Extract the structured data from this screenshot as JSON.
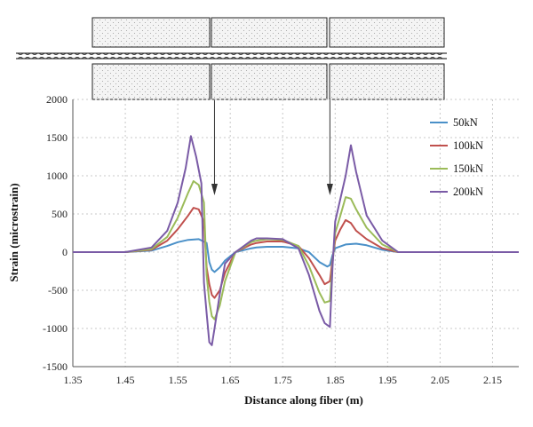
{
  "chart_data": {
    "type": "line",
    "xlabel": "Distance along fiber (m)",
    "ylabel": "Strain (microstrain)",
    "xlim": [
      1.35,
      2.2
    ],
    "ylim": [
      -1500,
      2000
    ],
    "xticks": [
      1.35,
      1.45,
      1.55,
      1.65,
      1.75,
      1.85,
      1.95,
      2.05,
      2.15
    ],
    "xtick_labels": [
      "1.35",
      "1.45",
      "1.55",
      "1.65",
      "1.75",
      "1.85",
      "1.95",
      "2.05",
      "2.15"
    ],
    "yticks": [
      -1500,
      -1000,
      -500,
      0,
      500,
      1000,
      1500,
      2000
    ],
    "ytick_labels": [
      "-1500",
      "-1000",
      "-500",
      "0",
      "500",
      "1000",
      "1500",
      "2000"
    ],
    "grid": "dotted",
    "legend_position": "right",
    "series": [
      {
        "name": "50kN",
        "color": "#4a90c8",
        "x": [
          1.35,
          1.45,
          1.5,
          1.53,
          1.55,
          1.57,
          1.59,
          1.605,
          1.61,
          1.615,
          1.62,
          1.63,
          1.64,
          1.66,
          1.69,
          1.7,
          1.72,
          1.75,
          1.78,
          1.8,
          1.82,
          1.835,
          1.84,
          1.845,
          1.85,
          1.87,
          1.89,
          1.91,
          1.94,
          1.97,
          2.05,
          2.2
        ],
        "y": [
          0,
          0,
          20,
          80,
          130,
          160,
          170,
          120,
          -130,
          -230,
          -260,
          -200,
          -110,
          0,
          50,
          60,
          70,
          70,
          50,
          0,
          -130,
          -190,
          -170,
          -40,
          50,
          100,
          110,
          90,
          30,
          0,
          0,
          0
        ]
      },
      {
        "name": "100kN",
        "color": "#c0504d",
        "x": [
          1.35,
          1.45,
          1.5,
          1.53,
          1.55,
          1.57,
          1.58,
          1.59,
          1.6,
          1.605,
          1.61,
          1.615,
          1.62,
          1.63,
          1.64,
          1.66,
          1.69,
          1.7,
          1.72,
          1.75,
          1.78,
          1.8,
          1.82,
          1.83,
          1.84,
          1.845,
          1.85,
          1.86,
          1.87,
          1.88,
          1.89,
          1.91,
          1.94,
          1.97,
          2.05,
          2.2
        ],
        "y": [
          0,
          0,
          30,
          150,
          300,
          480,
          580,
          560,
          400,
          -200,
          -420,
          -560,
          -600,
          -500,
          -270,
          0,
          100,
          120,
          140,
          140,
          80,
          -80,
          -300,
          -420,
          -380,
          -100,
          150,
          300,
          420,
          380,
          280,
          170,
          50,
          0,
          0,
          0
        ]
      },
      {
        "name": "150kN",
        "color": "#9bbb59",
        "x": [
          1.35,
          1.45,
          1.5,
          1.53,
          1.55,
          1.57,
          1.58,
          1.59,
          1.6,
          1.605,
          1.61,
          1.615,
          1.62,
          1.63,
          1.64,
          1.66,
          1.69,
          1.7,
          1.72,
          1.75,
          1.78,
          1.8,
          1.82,
          1.83,
          1.84,
          1.845,
          1.85,
          1.86,
          1.87,
          1.88,
          1.89,
          1.91,
          1.94,
          1.97,
          2.05,
          2.2
        ],
        "y": [
          0,
          0,
          40,
          200,
          450,
          780,
          930,
          880,
          650,
          -300,
          -650,
          -840,
          -880,
          -700,
          -380,
          0,
          130,
          150,
          170,
          160,
          80,
          -180,
          -530,
          -660,
          -640,
          -150,
          250,
          480,
          720,
          700,
          560,
          320,
          100,
          0,
          0,
          0
        ]
      },
      {
        "name": "200kN",
        "color": "#7a5ba6",
        "x": [
          1.35,
          1.45,
          1.5,
          1.53,
          1.55,
          1.565,
          1.575,
          1.585,
          1.595,
          1.6,
          1.605,
          1.61,
          1.615,
          1.62,
          1.63,
          1.64,
          1.66,
          1.69,
          1.7,
          1.72,
          1.75,
          1.78,
          1.8,
          1.82,
          1.83,
          1.84,
          1.845,
          1.85,
          1.86,
          1.87,
          1.88,
          1.89,
          1.91,
          1.94,
          1.97,
          2.05,
          2.2
        ],
        "y": [
          0,
          0,
          60,
          280,
          650,
          1100,
          1520,
          1250,
          900,
          -400,
          -800,
          -1180,
          -1220,
          -1000,
          -550,
          -150,
          0,
          150,
          180,
          180,
          170,
          50,
          -300,
          -770,
          -930,
          -980,
          -200,
          400,
          700,
          1000,
          1400,
          1050,
          480,
          150,
          0,
          0,
          0
        ]
      }
    ]
  },
  "annotations": {
    "arrows": [
      {
        "at_x": 1.62
      },
      {
        "at_x": 1.84
      }
    ]
  }
}
